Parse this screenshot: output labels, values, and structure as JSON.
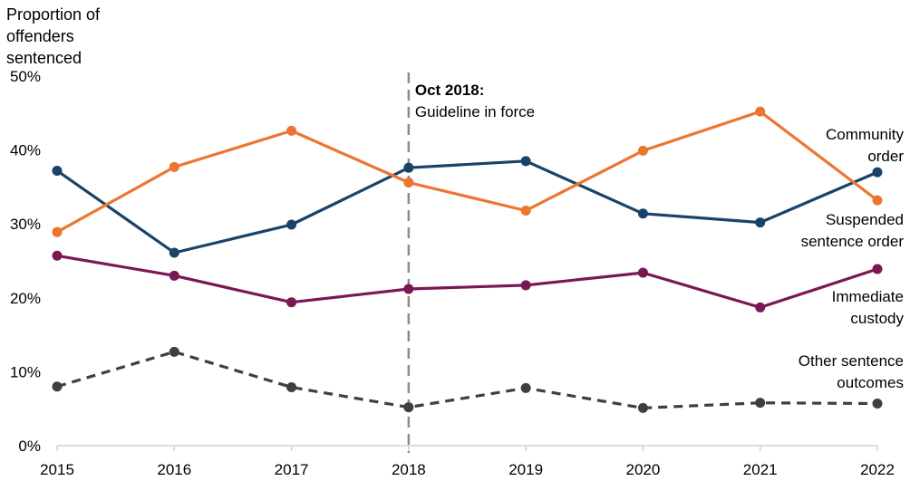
{
  "chart_data": {
    "type": "line",
    "title": "",
    "ylabel": "Proportion of offenders sentenced",
    "ylabel_lines": [
      "Proportion of",
      "offenders",
      "sentenced"
    ],
    "xlabel": "",
    "ylim": [
      0,
      50
    ],
    "yticks": [
      "0%",
      "10%",
      "20%",
      "30%",
      "40%",
      "50%"
    ],
    "categories": [
      "2015",
      "2016",
      "2017",
      "2018",
      "2019",
      "2020",
      "2021",
      "2022"
    ],
    "series": [
      {
        "name": "Community order",
        "label_lines": [
          "Community",
          "order"
        ],
        "color": "#1b4268",
        "dashed": false,
        "values": [
          37.2,
          26.1,
          29.9,
          37.6,
          38.5,
          31.4,
          30.2,
          37.0
        ]
      },
      {
        "name": "Suspended sentence order",
        "label_lines": [
          "Suspended",
          "sentence order"
        ],
        "color": "#ed7530",
        "dashed": false,
        "values": [
          28.9,
          37.7,
          42.6,
          35.6,
          31.8,
          39.9,
          45.2,
          33.2
        ]
      },
      {
        "name": "Immediate custody",
        "label_lines": [
          "Immediate",
          "custody"
        ],
        "color": "#7b1753",
        "dashed": false,
        "values": [
          25.7,
          23.0,
          19.4,
          21.2,
          21.7,
          23.4,
          18.7,
          23.9
        ]
      },
      {
        "name": "Other sentence outcomes",
        "label_lines": [
          "Other sentence",
          "outcomes"
        ],
        "color": "#3f3f3f",
        "dashed": true,
        "values": [
          8.0,
          12.7,
          7.9,
          5.2,
          7.8,
          5.1,
          5.8,
          5.7
        ]
      }
    ],
    "annotation": {
      "category": "2018",
      "title": "Oct 2018:",
      "text": "Guideline in force"
    }
  }
}
